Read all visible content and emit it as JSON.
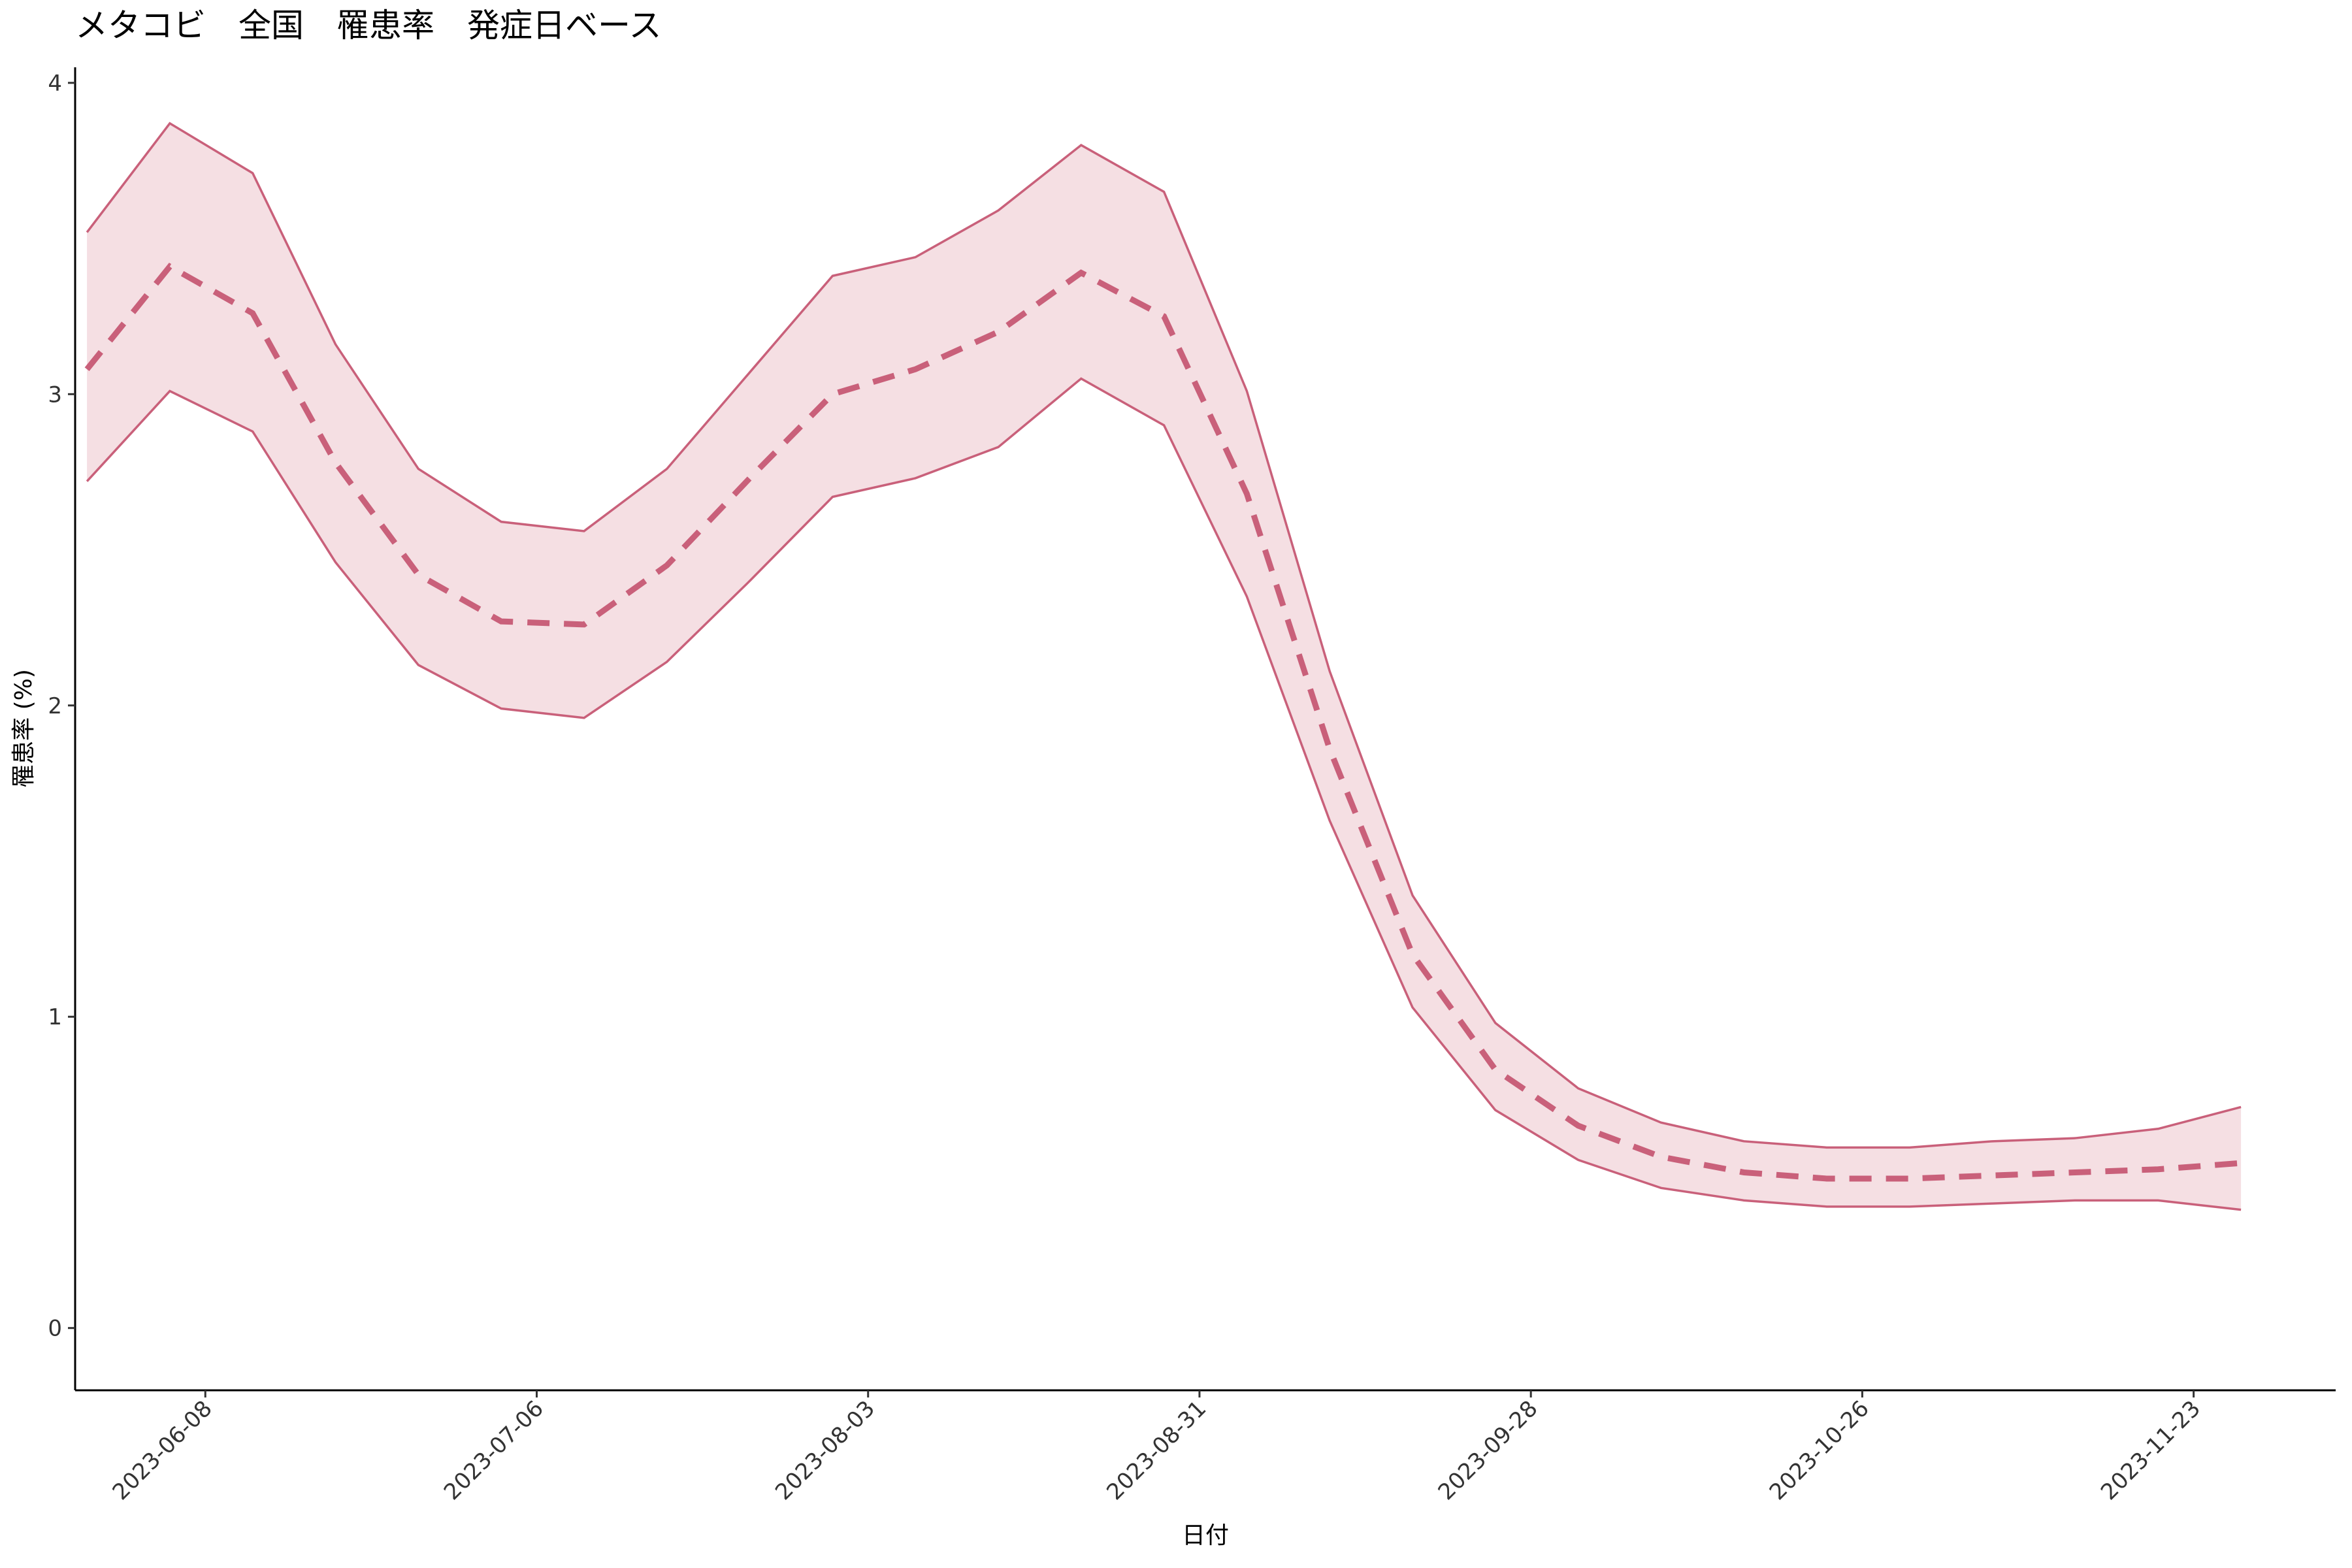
{
  "chart_data": {
    "type": "line",
    "title": "メタコビ　全国　罹患率　発症日ベース",
    "xlabel": "日付",
    "ylabel": "罹患率 (%)",
    "x": [
      "2023-05-29",
      "2023-06-05",
      "2023-06-12",
      "2023-06-19",
      "2023-06-26",
      "2023-07-03",
      "2023-07-10",
      "2023-07-17",
      "2023-07-24",
      "2023-07-31",
      "2023-08-07",
      "2023-08-14",
      "2023-08-21",
      "2023-08-28",
      "2023-09-04",
      "2023-09-11",
      "2023-09-18",
      "2023-09-25",
      "2023-10-02",
      "2023-10-09",
      "2023-10-16",
      "2023-10-23",
      "2023-10-30",
      "2023-11-06",
      "2023-11-13",
      "2023-11-20",
      "2023-11-27"
    ],
    "line": {
      "color": "#c9607a",
      "values": [
        3.08,
        3.41,
        3.26,
        2.78,
        2.42,
        2.27,
        2.26,
        2.45,
        2.73,
        3.0,
        3.08,
        3.2,
        3.39,
        3.25,
        2.68,
        1.86,
        1.2,
        0.83,
        0.65,
        0.55,
        0.5,
        0.48,
        0.48,
        0.49,
        0.5,
        0.51,
        0.53
      ]
    },
    "band": {
      "color": "#c9607a",
      "fill": "#f5dfe3",
      "upper": [
        3.52,
        3.87,
        3.71,
        3.16,
        2.76,
        2.59,
        2.56,
        2.76,
        3.07,
        3.38,
        3.44,
        3.59,
        3.8,
        3.65,
        3.01,
        2.11,
        1.39,
        0.98,
        0.77,
        0.66,
        0.6,
        0.58,
        0.58,
        0.6,
        0.61,
        0.64,
        0.71
      ],
      "lower": [
        2.72,
        3.01,
        2.88,
        2.46,
        2.13,
        1.99,
        1.96,
        2.14,
        2.4,
        2.67,
        2.73,
        2.83,
        3.05,
        2.9,
        2.35,
        1.63,
        1.03,
        0.7,
        0.54,
        0.45,
        0.41,
        0.39,
        0.39,
        0.4,
        0.41,
        0.41,
        0.38
      ]
    },
    "xlim": [
      "2023-05-28",
      "2023-12-05"
    ],
    "xticks": [
      "2023-06-08",
      "2023-07-06",
      "2023-08-03",
      "2023-08-31",
      "2023-09-28",
      "2023-10-26",
      "2023-11-23"
    ],
    "ylim": [
      -0.2,
      4.05
    ],
    "yticks": [
      0,
      1,
      2,
      3,
      4
    ]
  }
}
